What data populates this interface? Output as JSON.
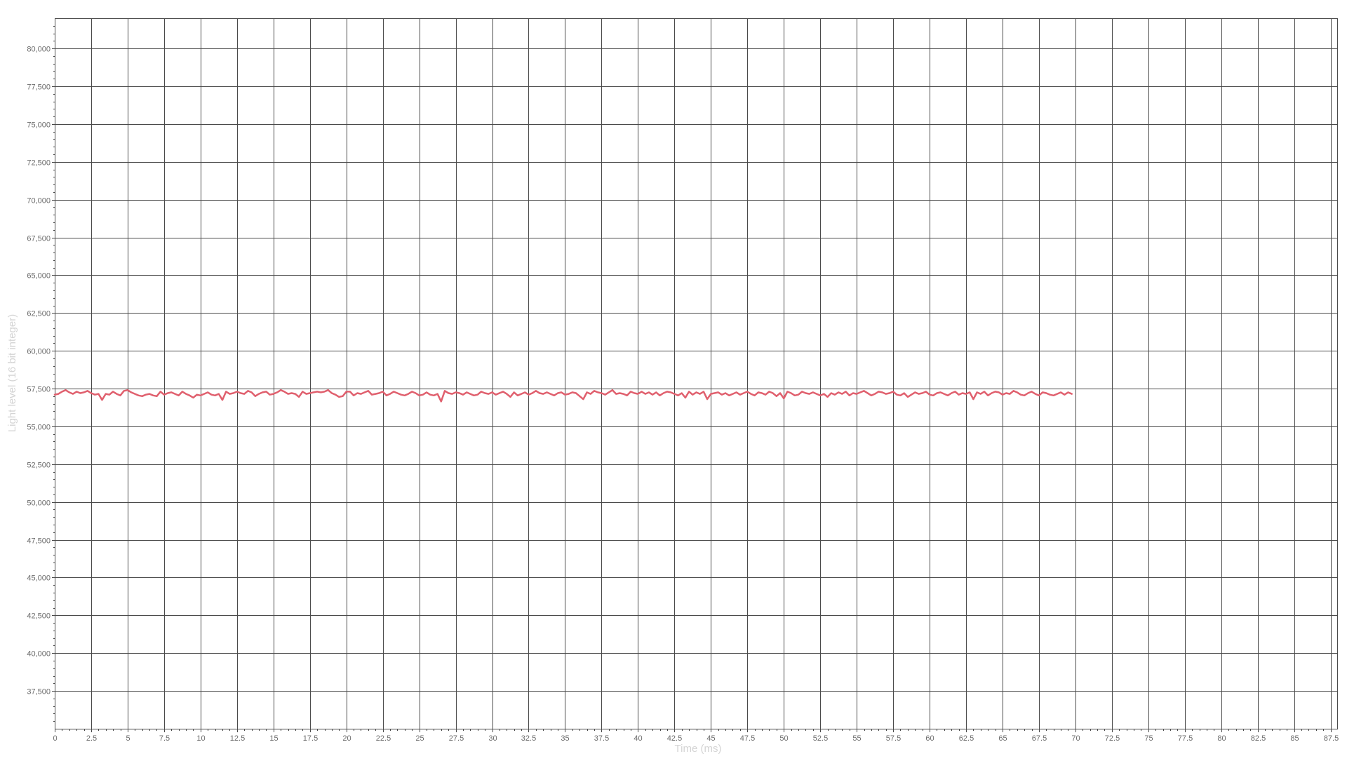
{
  "colors": {
    "background": "#ffffff",
    "grid": "#4a4a4a",
    "series": "#e0606e",
    "tick_text": "#6b6b6b",
    "axis_title": "#d4d4d4"
  },
  "chart_data": {
    "type": "line",
    "title": "",
    "xlabel": "Time (ms)",
    "ylabel": "Light level (16 bit integer)",
    "xlim": [
      0,
      88
    ],
    "ylim": [
      35000,
      82000
    ],
    "grid": true,
    "legend": "none",
    "x_ticks": [
      "0",
      "2.5",
      "5",
      "7.5",
      "10",
      "12.5",
      "15",
      "17.5",
      "20",
      "22.5",
      "25",
      "27.5",
      "30",
      "32.5",
      "35",
      "37.5",
      "40",
      "42.5",
      "45",
      "47.5",
      "50",
      "52.5",
      "55",
      "57.5",
      "60",
      "62.5",
      "65",
      "67.5",
      "70",
      "72.5",
      "75",
      "77.5",
      "80",
      "82.5",
      "85",
      "87.5"
    ],
    "y_ticks": [
      "37,500",
      "40,000",
      "42,500",
      "45,000",
      "47,500",
      "50,000",
      "52,500",
      "55,000",
      "57,500",
      "60,000",
      "62,500",
      "65,000",
      "67,500",
      "70,000",
      "72,500",
      "75,000",
      "77,500",
      "80,000"
    ],
    "series": [
      {
        "name": "",
        "x_start": 0,
        "x_step": 0.25,
        "values": [
          57100,
          57150,
          57300,
          57400,
          57250,
          57150,
          57300,
          57200,
          57250,
          57350,
          57200,
          57100,
          57150,
          56750,
          57150,
          57100,
          57300,
          57150,
          57050,
          57350,
          57400,
          57250,
          57150,
          57050,
          57000,
          57100,
          57150,
          57050,
          57000,
          57300,
          57100,
          57200,
          57250,
          57150,
          57050,
          57300,
          57150,
          57050,
          56900,
          57100,
          57050,
          57150,
          57250,
          57100,
          57050,
          57150,
          56750,
          57300,
          57150,
          57200,
          57300,
          57200,
          57150,
          57350,
          57250,
          57000,
          57150,
          57250,
          57300,
          57100,
          57150,
          57250,
          57400,
          57300,
          57150,
          57200,
          57150,
          56950,
          57300,
          57150,
          57200,
          57250,
          57300,
          57250,
          57300,
          57400,
          57200,
          57100,
          56950,
          57000,
          57300,
          57300,
          57050,
          57200,
          57150,
          57250,
          57350,
          57100,
          57150,
          57200,
          57300,
          57050,
          57150,
          57300,
          57200,
          57100,
          57050,
          57150,
          57300,
          57200,
          57050,
          57100,
          57250,
          57100,
          57050,
          57150,
          56650,
          57350,
          57200,
          57150,
          57250,
          57200,
          57100,
          57250,
          57150,
          57050,
          57100,
          57300,
          57200,
          57150,
          57250,
          57100,
          57200,
          57300,
          57150,
          56950,
          57250,
          57050,
          57150,
          57250,
          57100,
          57200,
          57350,
          57200,
          57150,
          57250,
          57150,
          57050,
          57200,
          57250,
          57100,
          57150,
          57250,
          57200,
          57000,
          56800,
          57250,
          57150,
          57350,
          57250,
          57200,
          57100,
          57250,
          57400,
          57150,
          57200,
          57150,
          57050,
          57300,
          57200,
          57150,
          57300,
          57150,
          57250,
          57100,
          57250,
          57050,
          57200,
          57300,
          57250,
          57150,
          57050,
          57200,
          56900,
          57300,
          57100,
          57250,
          57150,
          57300,
          56800,
          57150,
          57200,
          57250,
          57100,
          57200,
          57050,
          57150,
          57250,
          57100,
          57200,
          57300,
          57150,
          57050,
          57250,
          57200,
          57100,
          57300,
          57200,
          57000,
          57200,
          56850,
          57300,
          57200,
          57050,
          57100,
          57300,
          57200,
          57150,
          57250,
          57150,
          57050,
          57150,
          56950,
          57200,
          57100,
          57250,
          57150,
          57300,
          57050,
          57200,
          57150,
          57250,
          57350,
          57200,
          57050,
          57150,
          57300,
          57250,
          57150,
          57200,
          57300,
          57100,
          57050,
          57200,
          56950,
          57100,
          57250,
          57150,
          57200,
          57300,
          57100,
          57050,
          57200,
          57250,
          57150,
          57050,
          57200,
          57300,
          57100,
          57200,
          57150,
          57250,
          56800,
          57250,
          57150,
          57300,
          57050,
          57200,
          57300,
          57250,
          57100,
          57200,
          57150,
          57350,
          57250,
          57100,
          57050,
          57200,
          57300,
          57150,
          57050,
          57250,
          57200,
          57100,
          57050,
          57150,
          57250,
          57100,
          57250,
          57150
        ]
      }
    ]
  }
}
